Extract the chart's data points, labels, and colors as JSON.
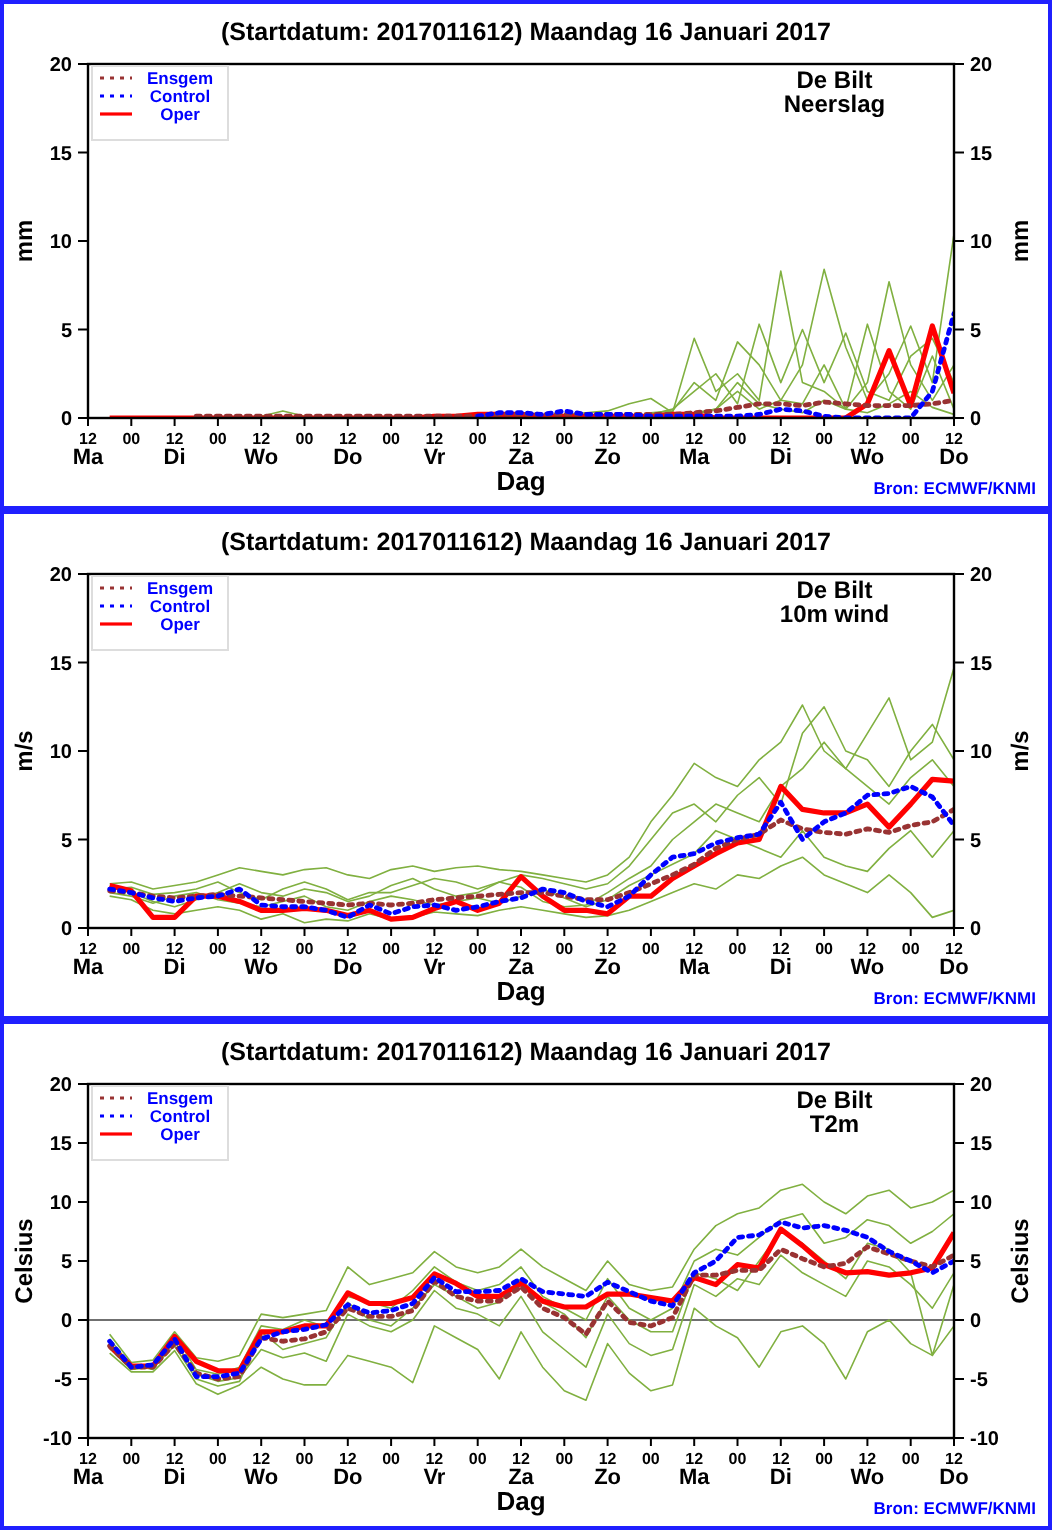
{
  "chart_data": [
    {
      "type": "line",
      "title": "(Startdatum: 2017011612) Maandag 16 Januari 2017",
      "xlabel": "Dag",
      "ylabel": "mm",
      "y2label": "mm",
      "annotations": [
        "De Bilt",
        "Neerslag",
        "Bron: ECMWF/KNMI"
      ],
      "legend": "top left",
      "x": [
        "2017-01-16T18:00",
        "2017-01-17T00:00",
        "2017-01-17T06:00",
        "2017-01-17T12:00",
        "2017-01-17T18:00",
        "2017-01-18T00:00",
        "2017-01-18T06:00",
        "2017-01-18T12:00",
        "2017-01-18T18:00",
        "2017-01-19T00:00",
        "2017-01-19T06:00",
        "2017-01-19T12:00",
        "2017-01-19T18:00",
        "2017-01-20T00:00",
        "2017-01-20T06:00",
        "2017-01-20T12:00",
        "2017-01-20T18:00",
        "2017-01-21T00:00",
        "2017-01-21T06:00",
        "2017-01-21T12:00",
        "2017-01-21T18:00",
        "2017-01-22T00:00",
        "2017-01-22T06:00",
        "2017-01-22T12:00",
        "2017-01-22T18:00",
        "2017-01-23T00:00",
        "2017-01-23T06:00",
        "2017-01-23T12:00",
        "2017-01-23T18:00",
        "2017-01-24T00:00",
        "2017-01-24T06:00",
        "2017-01-24T12:00",
        "2017-01-24T18:00",
        "2017-01-25T00:00",
        "2017-01-25T06:00",
        "2017-01-25T12:00",
        "2017-01-25T18:00",
        "2017-01-26T00:00",
        "2017-01-26T06:00",
        "2017-01-26T12:00"
      ],
      "xlim": [
        "2017-01-16T12:00",
        "2017-01-26T12:00"
      ],
      "xticks": [
        {
          "value": "2017-01-16T12:00",
          "label": "12\nMa"
        },
        {
          "value": "2017-01-17T00:00",
          "label": "00"
        },
        {
          "value": "2017-01-17T12:00",
          "label": "12\nDi"
        },
        {
          "value": "2017-01-18T00:00",
          "label": "00"
        },
        {
          "value": "2017-01-18T12:00",
          "label": "12\nWo"
        },
        {
          "value": "2017-01-19T00:00",
          "label": "00"
        },
        {
          "value": "2017-01-19T12:00",
          "label": "12\nDo"
        },
        {
          "value": "2017-01-20T00:00",
          "label": "00"
        },
        {
          "value": "2017-01-20T12:00",
          "label": "12\nVr"
        },
        {
          "value": "2017-01-21T00:00",
          "label": "00"
        },
        {
          "value": "2017-01-21T12:00",
          "label": "12\nZa"
        },
        {
          "value": "2017-01-22T00:00",
          "label": "00"
        },
        {
          "value": "2017-01-22T12:00",
          "label": "12\nZo"
        },
        {
          "value": "2017-01-23T00:00",
          "label": "00"
        },
        {
          "value": "2017-01-23T12:00",
          "label": "12\nMa"
        },
        {
          "value": "2017-01-24T00:00",
          "label": "00"
        },
        {
          "value": "2017-01-24T12:00",
          "label": "12\nDi"
        },
        {
          "value": "2017-01-25T00:00",
          "label": "00"
        },
        {
          "value": "2017-01-25T12:00",
          "label": "12\nWo"
        },
        {
          "value": "2017-01-26T00:00",
          "label": "00"
        },
        {
          "value": "2017-01-26T12:00",
          "label": "12\nDo"
        }
      ],
      "ylim": [
        0,
        20
      ],
      "yticks": [
        0,
        5,
        10,
        15,
        20
      ],
      "y2lim": [
        0,
        20
      ],
      "y2ticks": [
        0,
        5,
        10,
        15,
        20
      ],
      "series": [
        {
          "color": "#80b040",
          "values": [
            null,
            null,
            null,
            null,
            null,
            null,
            null,
            null,
            null,
            null,
            null,
            null,
            null,
            null,
            null,
            null,
            null,
            null,
            null,
            null,
            0.1,
            0.1,
            0.1,
            0.1,
            0.1,
            0.2,
            0.3,
            4.5,
            1.5,
            2.5,
            1.0,
            8.3,
            2,
            1.5,
            0.5,
            2,
            7.7,
            3,
            1,
            3
          ]
        },
        {
          "color": "#80b040",
          "values": [
            null,
            null,
            null,
            null,
            null,
            null,
            null,
            null,
            null,
            null,
            null,
            null,
            null,
            null,
            null,
            null,
            null,
            null,
            null,
            null,
            null,
            null,
            null,
            null,
            null,
            0.3,
            0.4,
            2,
            1,
            4.3,
            3,
            1,
            3,
            8.4,
            4,
            1,
            2.5,
            5.2,
            2,
            10.4
          ]
        },
        {
          "color": "#80b040",
          "values": [
            null,
            null,
            null,
            null,
            null,
            null,
            null,
            null,
            null,
            null,
            null,
            null,
            null,
            null,
            null,
            null,
            null,
            null,
            null,
            null,
            null,
            null,
            null,
            null,
            null,
            0.2,
            0.5,
            1.5,
            2.5,
            0.8,
            5.3,
            2,
            5,
            2,
            4.8,
            1.5,
            1,
            3.5,
            4.5,
            2
          ]
        },
        {
          "color": "#80b040",
          "values": [
            null,
            null,
            null,
            null,
            null,
            null,
            null,
            0.1,
            0.4,
            0.1,
            null,
            null,
            null,
            null,
            null,
            null,
            null,
            null,
            null,
            null,
            0.1,
            0.2,
            0.3,
            0.4,
            0.8,
            1.1,
            0.3,
            0.3,
            0.5,
            1.5,
            0.5,
            1,
            0.8,
            3,
            0.5,
            5.3,
            1.5,
            0.5,
            3.5,
            0.5
          ]
        },
        {
          "color": "#80b040",
          "values": [
            null,
            null,
            null,
            null,
            null,
            null,
            null,
            null,
            null,
            null,
            null,
            null,
            null,
            null,
            null,
            null,
            null,
            null,
            null,
            null,
            null,
            null,
            null,
            null,
            null,
            0.1,
            0.1,
            0.2,
            0.5,
            2,
            0.8,
            0.5,
            0.3,
            1,
            0.5,
            0.3,
            0.8,
            1.5,
            0.6,
            0.2
          ]
        },
        {
          "name": "Ensgem",
          "color": "#993333",
          "line_style": "dotted",
          "values": [
            null,
            null,
            null,
            null,
            0.1,
            0.1,
            0.1,
            0.1,
            0.1,
            0.1,
            0.1,
            0.1,
            0.1,
            0.1,
            0.1,
            0.1,
            0.1,
            0.1,
            0.2,
            0.2,
            0.2,
            0.2,
            0.2,
            0.2,
            0.2,
            0.2,
            0.2,
            0.3,
            0.4,
            0.6,
            0.8,
            0.8,
            0.7,
            0.9,
            0.8,
            0.7,
            0.7,
            0.7,
            0.8,
            1.0
          ]
        },
        {
          "name": "Control",
          "color": "#0000ff",
          "line_style": "dotted",
          "values": [
            null,
            null,
            null,
            null,
            null,
            null,
            null,
            null,
            null,
            null,
            null,
            null,
            null,
            null,
            null,
            null,
            null,
            0.1,
            0.3,
            0.3,
            0.2,
            0.4,
            0.2,
            0.2,
            0.2,
            0.1,
            0.1,
            0.1,
            0.1,
            0.1,
            0.2,
            0.5,
            0.4,
            0.1,
            0,
            0,
            0,
            0,
            1.5,
            5.9
          ]
        },
        {
          "name": "Oper",
          "color": "#ff0000",
          "line_style": "solid",
          "values": [
            0,
            0,
            0,
            0,
            0,
            0,
            0,
            0,
            0,
            0,
            0,
            0,
            0,
            0,
            0,
            0.1,
            0.1,
            0.2,
            0.2,
            0.2,
            0.1,
            0.1,
            0.1,
            0.1,
            0.1,
            0.1,
            0.2,
            0.2,
            0,
            0,
            0,
            0,
            0,
            0,
            0,
            0.8,
            3.8,
            0.7,
            5.2,
            1.4
          ]
        }
      ]
    },
    {
      "type": "line",
      "title": "(Startdatum: 2017011612) Maandag 16 Januari 2017",
      "xlabel": "Dag",
      "ylabel": "m/s",
      "y2label": "m/s",
      "annotations": [
        "De Bilt",
        "10m wind",
        "Bron: ECMWF/KNMI"
      ],
      "legend": "top left",
      "x": [
        "2017-01-16T18:00",
        "2017-01-17T00:00",
        "2017-01-17T06:00",
        "2017-01-17T12:00",
        "2017-01-17T18:00",
        "2017-01-18T00:00",
        "2017-01-18T06:00",
        "2017-01-18T12:00",
        "2017-01-18T18:00",
        "2017-01-19T00:00",
        "2017-01-19T06:00",
        "2017-01-19T12:00",
        "2017-01-19T18:00",
        "2017-01-20T00:00",
        "2017-01-20T06:00",
        "2017-01-20T12:00",
        "2017-01-20T18:00",
        "2017-01-21T00:00",
        "2017-01-21T06:00",
        "2017-01-21T12:00",
        "2017-01-21T18:00",
        "2017-01-22T00:00",
        "2017-01-22T06:00",
        "2017-01-22T12:00",
        "2017-01-22T18:00",
        "2017-01-23T00:00",
        "2017-01-23T06:00",
        "2017-01-23T12:00",
        "2017-01-23T18:00",
        "2017-01-24T00:00",
        "2017-01-24T06:00",
        "2017-01-24T12:00",
        "2017-01-24T18:00",
        "2017-01-25T00:00",
        "2017-01-25T06:00",
        "2017-01-25T12:00",
        "2017-01-25T18:00",
        "2017-01-26T00:00",
        "2017-01-26T06:00",
        "2017-01-26T12:00"
      ],
      "xlim": [
        "2017-01-16T12:00",
        "2017-01-26T12:00"
      ],
      "xticks": [
        {
          "value": "2017-01-16T12:00",
          "label": "12\nMa"
        },
        {
          "value": "2017-01-17T00:00",
          "label": "00"
        },
        {
          "value": "2017-01-17T12:00",
          "label": "12\nDi"
        },
        {
          "value": "2017-01-18T00:00",
          "label": "00"
        },
        {
          "value": "2017-01-18T12:00",
          "label": "12\nWo"
        },
        {
          "value": "2017-01-19T00:00",
          "label": "00"
        },
        {
          "value": "2017-01-19T12:00",
          "label": "12\nDo"
        },
        {
          "value": "2017-01-20T00:00",
          "label": "00"
        },
        {
          "value": "2017-01-20T12:00",
          "label": "12\nVr"
        },
        {
          "value": "2017-01-21T00:00",
          "label": "00"
        },
        {
          "value": "2017-01-21T12:00",
          "label": "12\nZa"
        },
        {
          "value": "2017-01-22T00:00",
          "label": "00"
        },
        {
          "value": "2017-01-22T12:00",
          "label": "12\nZo"
        },
        {
          "value": "2017-01-23T00:00",
          "label": "00"
        },
        {
          "value": "2017-01-23T12:00",
          "label": "12\nMa"
        },
        {
          "value": "2017-01-24T00:00",
          "label": "00"
        },
        {
          "value": "2017-01-24T12:00",
          "label": "12\nDi"
        },
        {
          "value": "2017-01-25T00:00",
          "label": "00"
        },
        {
          "value": "2017-01-25T12:00",
          "label": "12\nWo"
        },
        {
          "value": "2017-01-26T00:00",
          "label": "00"
        },
        {
          "value": "2017-01-26T12:00",
          "label": "12\nDo"
        }
      ],
      "ylim": [
        0,
        20
      ],
      "yticks": [
        0,
        5,
        10,
        15,
        20
      ],
      "y2lim": [
        0,
        20
      ],
      "y2ticks": [
        0,
        5,
        10,
        15,
        20
      ],
      "series": [
        {
          "color": "#80b040",
          "values": [
            2.5,
            2.6,
            2.2,
            2.4,
            2.6,
            3.0,
            3.4,
            3.2,
            3.0,
            3.3,
            3.4,
            3.0,
            2.8,
            3.3,
            3.5,
            3.2,
            3.4,
            3.5,
            3.3,
            3.2,
            3.0,
            2.8,
            2.6,
            3.0,
            4.0,
            6.0,
            7.5,
            9.3,
            8.5,
            8.0,
            9.5,
            10.5,
            12.6,
            10.0,
            9.0,
            11.0,
            13.0,
            9.5,
            10.5,
            14.7
          ]
        },
        {
          "color": "#80b040",
          "values": [
            1.8,
            1.6,
            1.0,
            0.8,
            1.0,
            1.2,
            1.0,
            0.5,
            0.8,
            0.3,
            0.5,
            0.4,
            0.8,
            0.5,
            0.6,
            0.9,
            0.8,
            0.7,
            1.0,
            1.2,
            1.0,
            0.8,
            0.6,
            0.7,
            1.0,
            1.5,
            2.0,
            2.5,
            2.2,
            3.0,
            2.8,
            3.5,
            4.0,
            3.0,
            2.5,
            2.0,
            3.0,
            2.0,
            0.6,
            1.0
          ]
        },
        {
          "color": "#80b040",
          "values": [
            2.3,
            2.0,
            1.5,
            1.2,
            1.6,
            2.0,
            2.5,
            2.0,
            1.8,
            2.2,
            2.0,
            1.5,
            1.8,
            2.4,
            2.8,
            2.2,
            1.8,
            2.0,
            2.6,
            2.3,
            1.5,
            1.2,
            1.3,
            2.0,
            2.8,
            3.5,
            5.0,
            6.0,
            7.0,
            6.5,
            6.0,
            8.0,
            9.0,
            10.5,
            9.0,
            8.0,
            7.0,
            8.5,
            9.5,
            8.0
          ]
        },
        {
          "color": "#80b040",
          "values": [
            2.0,
            1.8,
            1.4,
            1.8,
            2.0,
            1.6,
            1.4,
            1.2,
            1.5,
            1.8,
            1.2,
            1.0,
            1.5,
            1.8,
            1.6,
            1.3,
            1.5,
            1.7,
            1.4,
            1.8,
            2.2,
            1.7,
            1.2,
            1.6,
            2.4,
            3.0,
            3.6,
            4.2,
            5.5,
            5.0,
            4.5,
            4.0,
            5.5,
            4.0,
            3.5,
            3.2,
            4.5,
            5.5,
            4.0,
            5.5
          ]
        },
        {
          "color": "#80b040",
          "values": [
            2.2,
            2.3,
            1.9,
            2.0,
            2.2,
            2.6,
            2.0,
            1.6,
            2.2,
            2.6,
            2.2,
            1.6,
            2.0,
            2.0,
            2.4,
            2.8,
            2.6,
            2.2,
            2.6,
            3.0,
            2.8,
            2.5,
            2.2,
            2.5,
            3.5,
            5.0,
            6.5,
            7.0,
            6.0,
            7.5,
            8.5,
            7.0,
            11.0,
            12.5,
            10.0,
            9.5,
            8.0,
            10.0,
            11.5,
            9.5
          ]
        },
        {
          "name": "Ensgem",
          "color": "#993333",
          "line_style": "dotted",
          "values": [
            2.1,
            2.0,
            1.8,
            1.7,
            1.8,
            1.9,
            1.8,
            1.7,
            1.6,
            1.5,
            1.4,
            1.3,
            1.4,
            1.3,
            1.4,
            1.6,
            1.7,
            1.8,
            1.9,
            2.0,
            2.0,
            1.8,
            1.6,
            1.6,
            2.0,
            2.5,
            3.0,
            3.6,
            4.5,
            5.0,
            5.3,
            6.1,
            5.6,
            5.4,
            5.3,
            5.6,
            5.4,
            5.8,
            6.0,
            6.7
          ]
        },
        {
          "name": "Control",
          "color": "#0000ff",
          "line_style": "dotted",
          "values": [
            2.2,
            2.0,
            1.7,
            1.5,
            1.7,
            1.8,
            2.2,
            1.3,
            1.2,
            1.2,
            1.0,
            0.6,
            1.3,
            0.8,
            1.2,
            1.3,
            1.0,
            1.2,
            1.5,
            1.7,
            2.2,
            2.0,
            1.5,
            1.2,
            1.8,
            3.0,
            4.0,
            4.2,
            4.8,
            5.1,
            5.3,
            7.1,
            5.0,
            6.0,
            6.5,
            7.5,
            7.6,
            8.0,
            7.4,
            5.8
          ]
        },
        {
          "name": "Oper",
          "color": "#ff0000",
          "line_style": "solid",
          "values": [
            2.4,
            2.1,
            0.6,
            0.6,
            1.8,
            1.8,
            1.5,
            1.0,
            1.0,
            1.1,
            1.0,
            0.7,
            1.0,
            0.5,
            0.6,
            1.1,
            1.5,
            1.0,
            1.4,
            2.9,
            1.8,
            1.0,
            1.0,
            0.8,
            1.8,
            1.8,
            2.8,
            3.5,
            4.2,
            4.8,
            5.0,
            8.0,
            6.7,
            6.5,
            6.5,
            7.0,
            5.7,
            7.0,
            8.4,
            8.3
          ]
        }
      ]
    },
    {
      "type": "line",
      "title": "(Startdatum: 2017011612) Maandag 16 Januari 2017",
      "xlabel": "Dag",
      "ylabel": "Celsius",
      "y2label": "Celsius",
      "annotations": [
        "De Bilt",
        "T2m",
        "Bron: ECMWF/KNMI"
      ],
      "legend": "top left",
      "x": [
        "2017-01-16T18:00",
        "2017-01-17T00:00",
        "2017-01-17T06:00",
        "2017-01-17T12:00",
        "2017-01-17T18:00",
        "2017-01-18T00:00",
        "2017-01-18T06:00",
        "2017-01-18T12:00",
        "2017-01-18T18:00",
        "2017-01-19T00:00",
        "2017-01-19T06:00",
        "2017-01-19T12:00",
        "2017-01-19T18:00",
        "2017-01-20T00:00",
        "2017-01-20T06:00",
        "2017-01-20T12:00",
        "2017-01-20T18:00",
        "2017-01-21T00:00",
        "2017-01-21T06:00",
        "2017-01-21T12:00",
        "2017-01-21T18:00",
        "2017-01-22T00:00",
        "2017-01-22T06:00",
        "2017-01-22T12:00",
        "2017-01-22T18:00",
        "2017-01-23T00:00",
        "2017-01-23T06:00",
        "2017-01-23T12:00",
        "2017-01-23T18:00",
        "2017-01-24T00:00",
        "2017-01-24T06:00",
        "2017-01-24T12:00",
        "2017-01-24T18:00",
        "2017-01-25T00:00",
        "2017-01-25T06:00",
        "2017-01-25T12:00",
        "2017-01-25T18:00",
        "2017-01-26T00:00",
        "2017-01-26T06:00",
        "2017-01-26T12:00"
      ],
      "xlim": [
        "2017-01-16T12:00",
        "2017-01-26T12:00"
      ],
      "xticks": [
        {
          "value": "2017-01-16T12:00",
          "label": "12\nMa"
        },
        {
          "value": "2017-01-17T00:00",
          "label": "00"
        },
        {
          "value": "2017-01-17T12:00",
          "label": "12\nDi"
        },
        {
          "value": "2017-01-18T00:00",
          "label": "00"
        },
        {
          "value": "2017-01-18T12:00",
          "label": "12\nWo"
        },
        {
          "value": "2017-01-19T00:00",
          "label": "00"
        },
        {
          "value": "2017-01-19T12:00",
          "label": "12\nDo"
        },
        {
          "value": "2017-01-20T00:00",
          "label": "00"
        },
        {
          "value": "2017-01-20T12:00",
          "label": "12\nVr"
        },
        {
          "value": "2017-01-21T00:00",
          "label": "00"
        },
        {
          "value": "2017-01-21T12:00",
          "label": "12\nZa"
        },
        {
          "value": "2017-01-22T00:00",
          "label": "00"
        },
        {
          "value": "2017-01-22T12:00",
          "label": "12\nZo"
        },
        {
          "value": "2017-01-23T00:00",
          "label": "00"
        },
        {
          "value": "2017-01-23T12:00",
          "label": "12\nMa"
        },
        {
          "value": "2017-01-24T00:00",
          "label": "00"
        },
        {
          "value": "2017-01-24T12:00",
          "label": "12\nDi"
        },
        {
          "value": "2017-01-25T00:00",
          "label": "00"
        },
        {
          "value": "2017-01-25T12:00",
          "label": "12\nWo"
        },
        {
          "value": "2017-01-26T00:00",
          "label": "00"
        },
        {
          "value": "2017-01-26T12:00",
          "label": "12\nDo"
        }
      ],
      "ylim": [
        -10,
        20
      ],
      "yticks": [
        -10,
        -5,
        0,
        5,
        10,
        15,
        20
      ],
      "y2lim": [
        -10,
        20
      ],
      "y2ticks": [
        -10,
        -5,
        0,
        5,
        10,
        15,
        20
      ],
      "ref_lines": [
        {
          "axis": "y",
          "value": 0,
          "color": "#707070"
        }
      ],
      "series": [
        {
          "color": "#80b040",
          "values": [
            -1.2,
            -3.6,
            -3.4,
            -1.0,
            -3.2,
            -3.5,
            -3.0,
            0.5,
            0.2,
            0.5,
            0.8,
            4.5,
            3.0,
            3.5,
            4.0,
            5.8,
            4.5,
            4.0,
            4.5,
            6.0,
            4.5,
            3.5,
            2.5,
            5.0,
            3.0,
            2.5,
            2.8,
            6.0,
            8.0,
            9.0,
            9.5,
            11.0,
            11.5,
            10.0,
            9.0,
            10.5,
            11.0,
            9.5,
            10.0,
            11.0
          ]
        },
        {
          "color": "#80b040",
          "values": [
            -2.8,
            -4.4,
            -4.4,
            -2.6,
            -5.4,
            -6.3,
            -5.5,
            -4.0,
            -5.0,
            -5.5,
            -5.5,
            -3.0,
            -3.5,
            -4.0,
            -5.3,
            -0.5,
            -1.5,
            -2.5,
            -5.0,
            -1.0,
            -4.0,
            -6.0,
            -6.8,
            -2.0,
            -4.5,
            -6.0,
            -5.5,
            1.0,
            -0.5,
            -1.5,
            -4.0,
            -1.0,
            -0.5,
            -2.0,
            -5.0,
            -1.0,
            0.0,
            -2.0,
            -3.0,
            -0.5
          ]
        },
        {
          "color": "#80b040",
          "values": [
            -2.0,
            -3.8,
            -4.2,
            -1.8,
            -4.6,
            -5.2,
            -4.9,
            -2.5,
            -3.2,
            -2.8,
            -3.5,
            0.5,
            -0.5,
            -1.0,
            0.0,
            2.5,
            1.0,
            0.5,
            -0.5,
            2.0,
            -1.0,
            -2.5,
            -4.0,
            0.5,
            -2.0,
            -3.0,
            -2.5,
            3.0,
            2.0,
            3.5,
            3.0,
            5.5,
            4.0,
            3.0,
            2.0,
            5.0,
            4.5,
            3.0,
            1.0,
            4.0
          ]
        },
        {
          "color": "#80b040",
          "values": [
            -1.6,
            -3.9,
            -3.8,
            -1.2,
            -4.2,
            -4.6,
            -4.0,
            -0.5,
            -0.8,
            0.0,
            -0.6,
            2.0,
            1.5,
            1.0,
            2.5,
            4.5,
            3.2,
            2.5,
            3.0,
            4.5,
            2.0,
            1.0,
            0.0,
            3.5,
            1.0,
            0.0,
            1.0,
            5.0,
            6.0,
            5.5,
            7.0,
            8.5,
            9.0,
            6.5,
            7.0,
            8.5,
            8.0,
            6.5,
            7.5,
            9.0
          ]
        },
        {
          "color": "#80b040",
          "values": [
            -2.4,
            -4.2,
            -4.0,
            -2.2,
            -5.0,
            -5.6,
            -5.2,
            -1.0,
            -2.5,
            -2.0,
            -1.5,
            1.5,
            0.0,
            -0.5,
            1.0,
            3.0,
            2.0,
            1.0,
            1.5,
            3.5,
            1.5,
            0.5,
            -1.5,
            2.0,
            0.0,
            -1.0,
            -1.0,
            4.0,
            3.5,
            2.5,
            5.0,
            7.5,
            6.5,
            5.0,
            3.5,
            6.5,
            6.0,
            4.0,
            -3.0,
            3.0
          ]
        },
        {
          "name": "Ensgem",
          "color": "#993333",
          "line_style": "dotted",
          "values": [
            -2.2,
            -4.0,
            -4.0,
            -2.0,
            -4.5,
            -5.0,
            -4.8,
            -1.5,
            -1.8,
            -1.6,
            -1.0,
            1.0,
            0.3,
            0.3,
            0.8,
            3.3,
            2.0,
            1.6,
            1.6,
            2.8,
            1.0,
            0.2,
            -1.2,
            1.6,
            -0.2,
            -0.5,
            0.2,
            3.8,
            3.8,
            4.2,
            4.2,
            6.0,
            5.2,
            4.5,
            4.8,
            6.2,
            5.6,
            5.0,
            4.5,
            5.5
          ]
        },
        {
          "name": "Control",
          "color": "#0000ff",
          "line_style": "dotted",
          "values": [
            -1.8,
            -4.0,
            -3.8,
            -1.6,
            -4.8,
            -4.8,
            -4.5,
            -1.6,
            -1.0,
            -0.8,
            -0.4,
            1.3,
            0.6,
            0.8,
            1.4,
            3.6,
            2.4,
            2.4,
            2.5,
            3.5,
            2.4,
            2.2,
            2.0,
            3.2,
            2.4,
            1.6,
            1.2,
            4.0,
            5.0,
            7.0,
            7.2,
            8.3,
            7.8,
            8.0,
            7.6,
            7.0,
            5.8,
            5.0,
            4.0,
            5.0
          ]
        },
        {
          "name": "Oper",
          "color": "#ff0000",
          "line_style": "solid",
          "values": [
            -2.2,
            -3.9,
            -3.9,
            -1.4,
            -3.5,
            -4.3,
            -4.3,
            -1.0,
            -1.0,
            -0.5,
            -0.5,
            2.3,
            1.4,
            1.4,
            1.9,
            3.9,
            3.1,
            2.0,
            2.0,
            3.1,
            1.6,
            1.1,
            1.1,
            2.2,
            2.2,
            1.9,
            1.6,
            3.6,
            3.0,
            4.7,
            4.4,
            7.7,
            6.3,
            4.7,
            4.0,
            4.1,
            3.8,
            4.0,
            4.4,
            7.4
          ]
        }
      ]
    }
  ]
}
